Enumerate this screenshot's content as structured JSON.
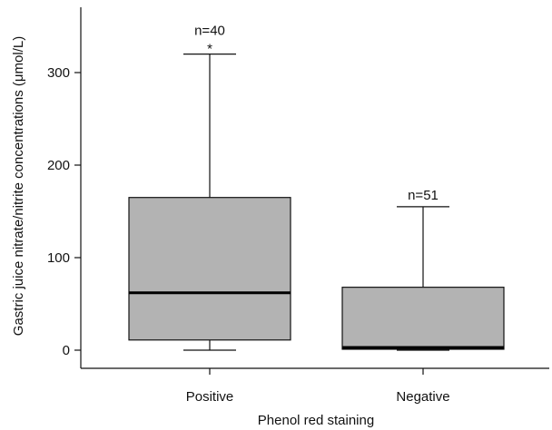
{
  "chart_data": {
    "type": "boxplot",
    "xlabel": "Phenol red staining",
    "ylabel": "Gastric juice nitrate/nitrite concentrations (μmol/L)",
    "ylim": [
      -20,
      370
    ],
    "yticks": [
      0,
      100,
      200,
      300
    ],
    "grid": false,
    "legend": "none",
    "categories": [
      "Positive",
      "Negative"
    ],
    "boxes": [
      {
        "category": "Positive",
        "min": 0,
        "q1": 11,
        "median": 62,
        "q3": 165,
        "max": 320,
        "n_label": "n=40",
        "marker": "*"
      },
      {
        "category": "Negative",
        "min": 0,
        "q1": 1,
        "median": 3,
        "q3": 68,
        "max": 155,
        "n_label": "n=51",
        "marker": ""
      }
    ],
    "colors": {
      "box_fill": "#b3b3b3",
      "stroke": "#111111",
      "median": "#000000"
    }
  }
}
